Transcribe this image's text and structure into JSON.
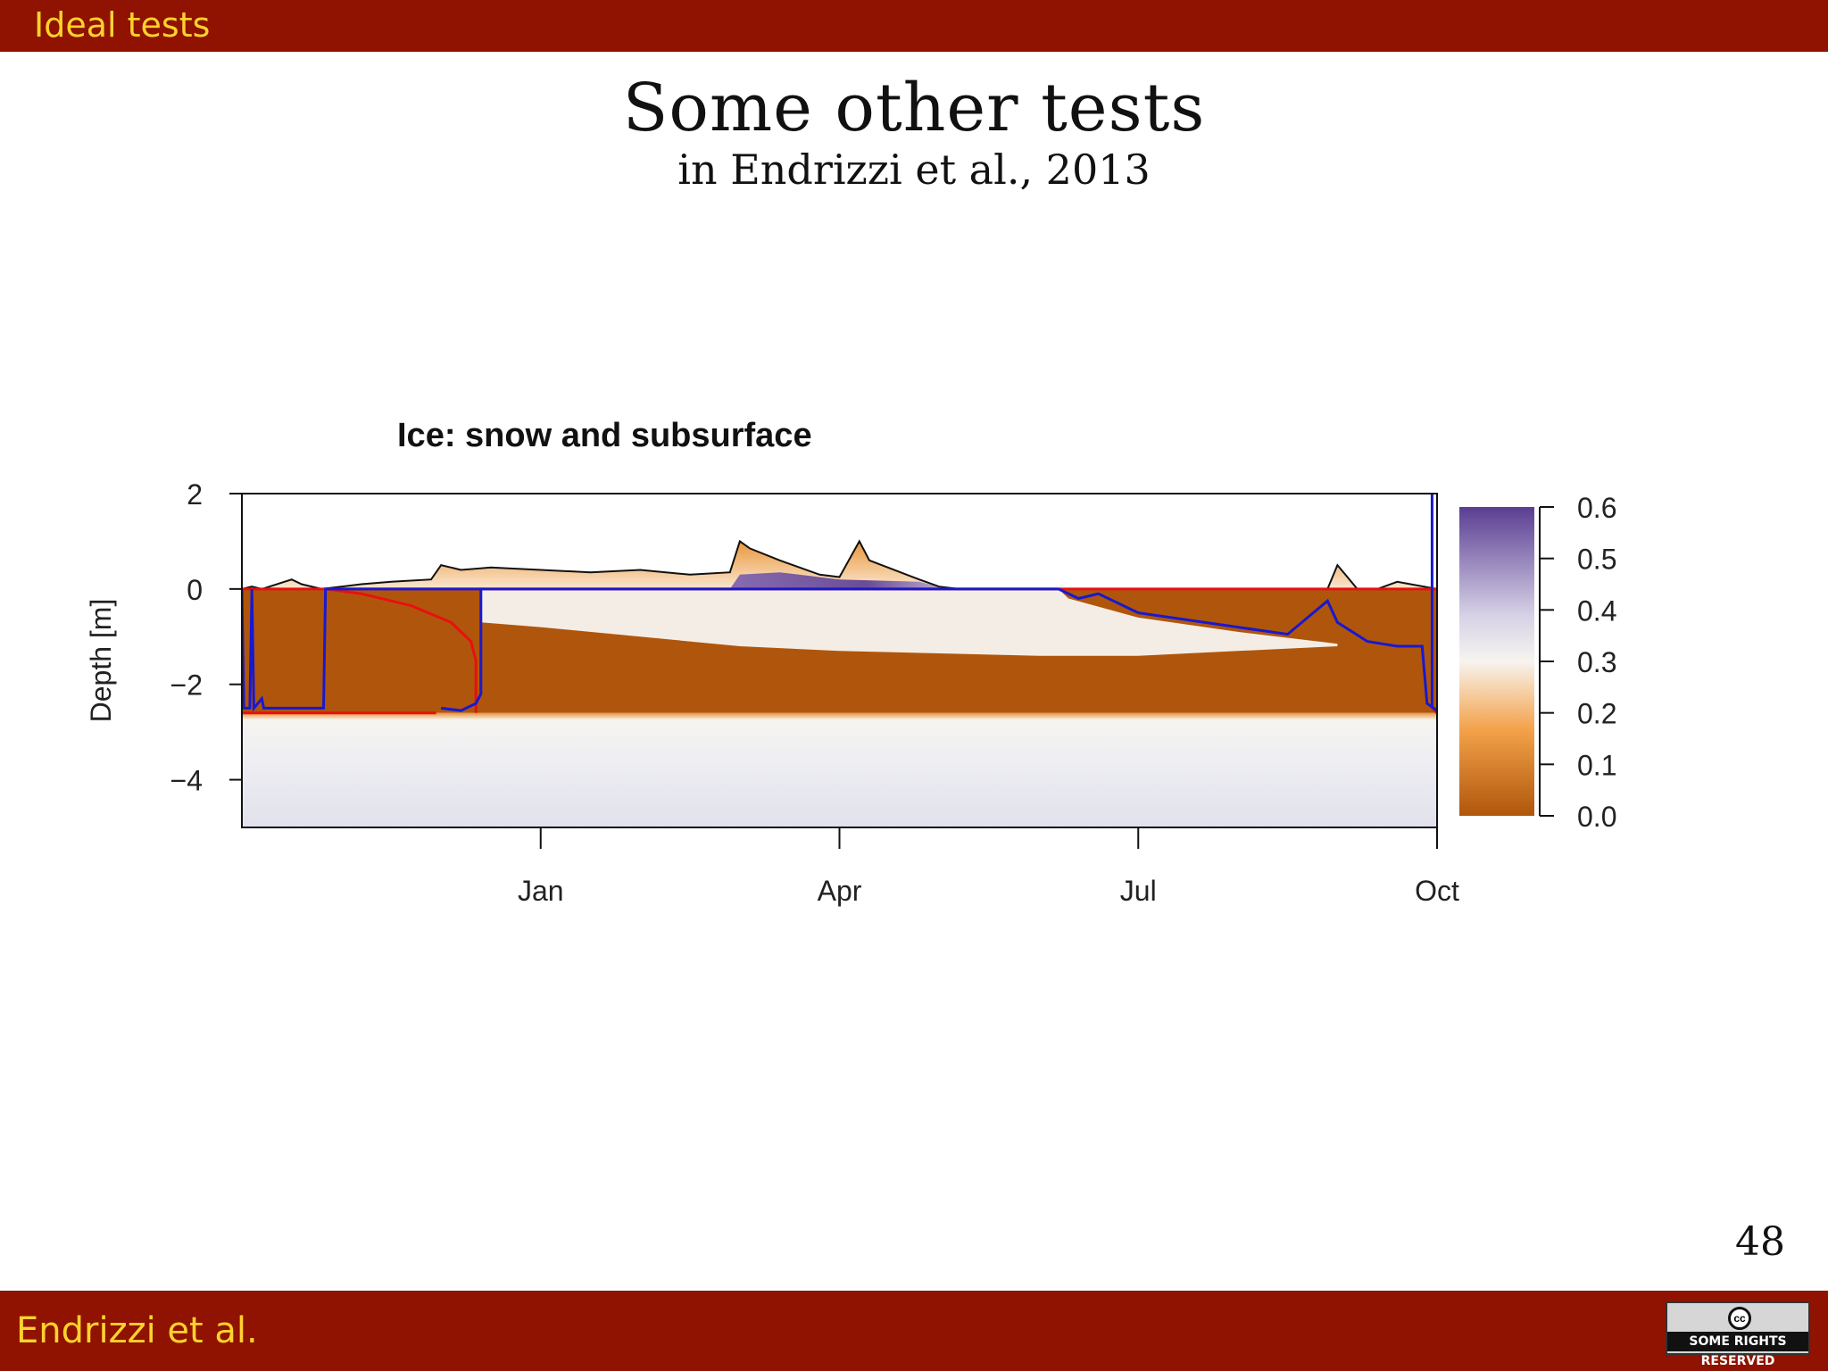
{
  "header": {
    "section_title": "Ideal tests"
  },
  "slide": {
    "title": "Some other tests",
    "subtitle": "in Endrizzi et al., 2013",
    "page_number": "48"
  },
  "footer": {
    "author": "Endrizzi et al.",
    "license_label": "SOME RIGHTS RESERVED",
    "license_icon": "creative-commons-icon"
  },
  "colors": {
    "bar_background": "#8f1300",
    "bar_text": "#ffd22e",
    "ice_low": "#b0560c",
    "ice_mid": "#f7f4ef",
    "ice_high": "#5a3d92",
    "snow_surface_line": "#111111",
    "red_line": "#e81010",
    "blue_line": "#1818d0"
  },
  "chart_data": {
    "type": "heatmap",
    "title": "Ice: snow and subsurface",
    "ylabel": "Depth [m]",
    "xlabel": "",
    "x_ticks": [
      "Jan",
      "Apr",
      "Jul",
      "Oct"
    ],
    "y_ticks": [
      2,
      0,
      -2,
      -4
    ],
    "ylim": [
      -5,
      2
    ],
    "x_range_months": [
      "Oct",
      "Oct"
    ],
    "colorbar": {
      "ticks": [
        "0.6",
        "0.5",
        "0.4",
        "0.3",
        "0.2",
        "0.1",
        "0.0"
      ],
      "range": [
        0,
        0.6
      ]
    },
    "snow_depth_profile": {
      "x_month_index": [
        0,
        0.1,
        0.2,
        0.5,
        0.6,
        0.8,
        1.0,
        1.2,
        1.5,
        1.9,
        2.0,
        2.1,
        2.2,
        2.5,
        3.0,
        3.5,
        4.0,
        4.5,
        4.9,
        5.0,
        5.1,
        5.4,
        5.8,
        6.0,
        6.2,
        6.3,
        6.8,
        7.0,
        7.2,
        7.4,
        8.0,
        8.6,
        9.0,
        9.5,
        10.0,
        10.5,
        10.9,
        11.0,
        11.2,
        11.4,
        11.6,
        12.0
      ],
      "depth_m": [
        0.0,
        0.05,
        0.0,
        0.2,
        0.1,
        0.0,
        0.05,
        0.1,
        0.15,
        0.2,
        0.5,
        0.45,
        0.4,
        0.45,
        0.4,
        0.35,
        0.4,
        0.3,
        0.35,
        1.0,
        0.85,
        0.6,
        0.3,
        0.25,
        1.0,
        0.6,
        0.2,
        0.05,
        0.0,
        0.0,
        0.0,
        0.0,
        0.0,
        0.0,
        0.0,
        0.0,
        0.0,
        0.5,
        0.0,
        0.0,
        0.15,
        0.0
      ]
    },
    "permafrost_table_depth_m": -2.6
  }
}
